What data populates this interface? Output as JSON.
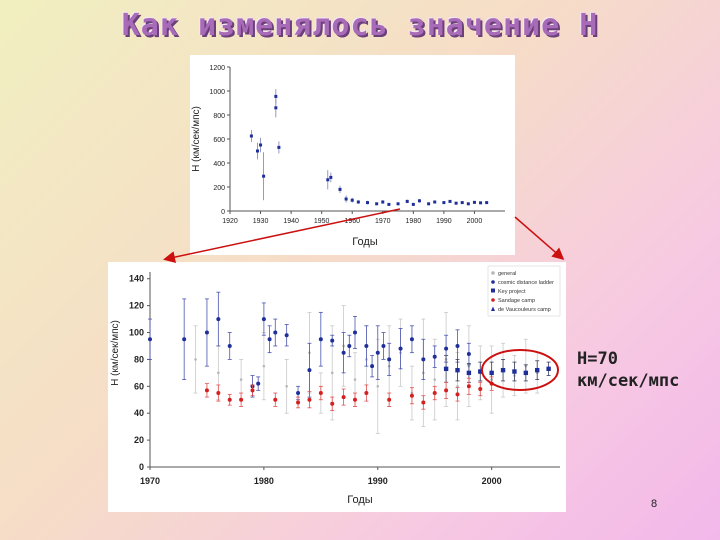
{
  "slide": {
    "title": "Как изменялось значение H",
    "annotation_line1": "H=70",
    "annotation_line2": "км/сек/мпс",
    "page_number": "8"
  },
  "colors": {
    "blue": "#1f2f9a",
    "red": "#d42020",
    "gray": "#b8b8b8",
    "arrow": "#cc1010",
    "ellipse": "#cc1010"
  },
  "chart_data": [
    {
      "type": "scatter",
      "title": "",
      "xlabel": "Годы",
      "ylabel": "H (км/сек/мпс)",
      "xlim": [
        1920,
        2010
      ],
      "ylim": [
        0,
        1200
      ],
      "xticks": [
        "1920",
        "1930",
        "1940",
        "1950",
        "1960",
        "1970",
        "1980",
        "1990",
        "2000"
      ],
      "yticks": [
        "0",
        "200",
        "400",
        "600",
        "800",
        "1000",
        "1200"
      ],
      "series": [
        {
          "points": [
            {
              "x": 1927,
              "y": 625,
              "e": 50
            },
            {
              "x": 1929,
              "y": 500,
              "e": 70
            },
            {
              "x": 1930,
              "y": 550,
              "e": 60
            },
            {
              "x": 1931,
              "y": 290,
              "e": 200
            },
            {
              "x": 1935,
              "y": 955,
              "e": 60
            },
            {
              "x": 1935,
              "y": 860,
              "e": 80
            },
            {
              "x": 1936,
              "y": 530,
              "e": 50
            },
            {
              "x": 1952,
              "y": 260,
              "e": 80
            },
            {
              "x": 1953,
              "y": 280,
              "e": 40
            },
            {
              "x": 1956,
              "y": 180,
              "e": 30
            },
            {
              "x": 1958,
              "y": 100,
              "e": 30
            },
            {
              "x": 1960,
              "y": 90,
              "e": 20
            },
            {
              "x": 1962,
              "y": 75,
              "e": 15
            },
            {
              "x": 1965,
              "y": 70,
              "e": 15
            },
            {
              "x": 1968,
              "y": 60,
              "e": 10
            },
            {
              "x": 1970,
              "y": 75,
              "e": 15
            },
            {
              "x": 1972,
              "y": 55,
              "e": 10
            },
            {
              "x": 1975,
              "y": 60,
              "e": 10
            },
            {
              "x": 1978,
              "y": 80,
              "e": 15
            },
            {
              "x": 1980,
              "y": 55,
              "e": 10
            },
            {
              "x": 1982,
              "y": 85,
              "e": 15
            },
            {
              "x": 1985,
              "y": 60,
              "e": 10
            },
            {
              "x": 1987,
              "y": 75,
              "e": 10
            },
            {
              "x": 1990,
              "y": 70,
              "e": 10
            },
            {
              "x": 1992,
              "y": 80,
              "e": 10
            },
            {
              "x": 1994,
              "y": 65,
              "e": 10
            },
            {
              "x": 1996,
              "y": 70,
              "e": 10
            },
            {
              "x": 1998,
              "y": 60,
              "e": 8
            },
            {
              "x": 2000,
              "y": 72,
              "e": 8
            },
            {
              "x": 2002,
              "y": 68,
              "e": 8
            },
            {
              "x": 2004,
              "y": 70,
              "e": 6
            }
          ]
        }
      ]
    },
    {
      "type": "scatter",
      "title": "",
      "xlabel": "Годы",
      "ylabel": "H (км/сек/мпс)",
      "xlim": [
        1970,
        2006
      ],
      "ylim": [
        0,
        145
      ],
      "xticks": [
        "1970",
        "1980",
        "1990",
        "2000"
      ],
      "yticks": [
        "0",
        "20",
        "40",
        "60",
        "80",
        "100",
        "120",
        "140"
      ],
      "legend_position": "top-right",
      "legend": [
        "general",
        "cosmic distance ladder",
        "Key project",
        "Sandage camp",
        "de Vaucouleurs camp"
      ],
      "series": [
        {
          "name": "general",
          "points": [
            {
              "x": 1974,
              "y": 80,
              "e": 25
            },
            {
              "x": 1976,
              "y": 70,
              "e": 20
            },
            {
              "x": 1978,
              "y": 65,
              "e": 15
            },
            {
              "x": 1980,
              "y": 75,
              "e": 25
            },
            {
              "x": 1982,
              "y": 60,
              "e": 20
            },
            {
              "x": 1984,
              "y": 85,
              "e": 30
            },
            {
              "x": 1985,
              "y": 55,
              "e": 15
            },
            {
              "x": 1986,
              "y": 70,
              "e": 35
            },
            {
              "x": 1987,
              "y": 90,
              "e": 30
            },
            {
              "x": 1988,
              "y": 65,
              "e": 20
            },
            {
              "x": 1989,
              "y": 80,
              "e": 25
            },
            {
              "x": 1990,
              "y": 60,
              "e": 35
            },
            {
              "x": 1991,
              "y": 75,
              "e": 30
            },
            {
              "x": 1992,
              "y": 85,
              "e": 25
            },
            {
              "x": 1993,
              "y": 55,
              "e": 20
            },
            {
              "x": 1994,
              "y": 70,
              "e": 40
            },
            {
              "x": 1995,
              "y": 65,
              "e": 30
            },
            {
              "x": 1996,
              "y": 80,
              "e": 35
            },
            {
              "x": 1997,
              "y": 60,
              "e": 25
            },
            {
              "x": 1998,
              "y": 75,
              "e": 30
            },
            {
              "x": 1999,
              "y": 70,
              "e": 20
            },
            {
              "x": 2000,
              "y": 65,
              "e": 25
            },
            {
              "x": 2001,
              "y": 72,
              "e": 20
            },
            {
              "x": 2002,
              "y": 68,
              "e": 15
            },
            {
              "x": 2003,
              "y": 75,
              "e": 20
            },
            {
              "x": 2004,
              "y": 70,
              "e": 15
            }
          ]
        },
        {
          "name": "de Vaucouleurs camp",
          "points": [
            {
              "x": 1970,
              "y": 95,
              "e": 15
            },
            {
              "x": 1973,
              "y": 95,
              "e": 30
            },
            {
              "x": 1975,
              "y": 100,
              "e": 25
            },
            {
              "x": 1976,
              "y": 110,
              "e": 20
            },
            {
              "x": 1977,
              "y": 90,
              "e": 10
            },
            {
              "x": 1979,
              "y": 60,
              "e": 8
            },
            {
              "x": 1979.5,
              "y": 62,
              "e": 5
            },
            {
              "x": 1980,
              "y": 110,
              "e": 12
            },
            {
              "x": 1980.5,
              "y": 95,
              "e": 10
            },
            {
              "x": 1981,
              "y": 100,
              "e": 10
            },
            {
              "x": 1982,
              "y": 98,
              "e": 8
            },
            {
              "x": 1983,
              "y": 55,
              "e": 5
            },
            {
              "x": 1984,
              "y": 72,
              "e": 20
            },
            {
              "x": 1985,
              "y": 95,
              "e": 20
            },
            {
              "x": 1986,
              "y": 94,
              "e": 4
            },
            {
              "x": 1987,
              "y": 85,
              "e": 15
            },
            {
              "x": 1987.5,
              "y": 90,
              "e": 8
            },
            {
              "x": 1988,
              "y": 100,
              "e": 12
            },
            {
              "x": 1989,
              "y": 90,
              "e": 15
            },
            {
              "x": 1989.5,
              "y": 75,
              "e": 8
            },
            {
              "x": 1990,
              "y": 85,
              "e": 20
            },
            {
              "x": 1990.5,
              "y": 90,
              "e": 10
            },
            {
              "x": 1991,
              "y": 80,
              "e": 12
            },
            {
              "x": 1992,
              "y": 88,
              "e": 15
            },
            {
              "x": 1993,
              "y": 95,
              "e": 10
            },
            {
              "x": 1994,
              "y": 80,
              "e": 15
            },
            {
              "x": 1995,
              "y": 82,
              "e": 8
            },
            {
              "x": 1996,
              "y": 88,
              "e": 10
            },
            {
              "x": 1997,
              "y": 90,
              "e": 12
            },
            {
              "x": 1998,
              "y": 84,
              "e": 8
            }
          ]
        },
        {
          "name": "Key project",
          "points": [
            {
              "x": 1996,
              "y": 73,
              "e": 10
            },
            {
              "x": 1997,
              "y": 72,
              "e": 8
            },
            {
              "x": 1998,
              "y": 70,
              "e": 7
            },
            {
              "x": 1999,
              "y": 71,
              "e": 7
            },
            {
              "x": 2000,
              "y": 70,
              "e": 8
            },
            {
              "x": 2001,
              "y": 72,
              "e": 8
            },
            {
              "x": 2002,
              "y": 71,
              "e": 7
            },
            {
              "x": 2003,
              "y": 70,
              "e": 6
            },
            {
              "x": 2004,
              "y": 72,
              "e": 7
            },
            {
              "x": 2005,
              "y": 73,
              "e": 5
            }
          ]
        },
        {
          "name": "Sandage camp",
          "points": [
            {
              "x": 1975,
              "y": 57,
              "e": 5
            },
            {
              "x": 1976,
              "y": 55,
              "e": 6
            },
            {
              "x": 1977,
              "y": 50,
              "e": 4
            },
            {
              "x": 1978,
              "y": 50,
              "e": 5
            },
            {
              "x": 1979,
              "y": 57,
              "e": 4
            },
            {
              "x": 1981,
              "y": 50,
              "e": 5
            },
            {
              "x": 1983,
              "y": 48,
              "e": 4
            },
            {
              "x": 1984,
              "y": 50,
              "e": 6
            },
            {
              "x": 1985,
              "y": 55,
              "e": 5
            },
            {
              "x": 1986,
              "y": 47,
              "e": 5
            },
            {
              "x": 1987,
              "y": 52,
              "e": 6
            },
            {
              "x": 1988,
              "y": 50,
              "e": 5
            },
            {
              "x": 1989,
              "y": 55,
              "e": 6
            },
            {
              "x": 1991,
              "y": 50,
              "e": 5
            },
            {
              "x": 1993,
              "y": 53,
              "e": 6
            },
            {
              "x": 1994,
              "y": 48,
              "e": 5
            },
            {
              "x": 1995,
              "y": 55,
              "e": 5
            },
            {
              "x": 1996,
              "y": 57,
              "e": 6
            },
            {
              "x": 1997,
              "y": 54,
              "e": 5
            },
            {
              "x": 1998,
              "y": 60,
              "e": 6
            },
            {
              "x": 1999,
              "y": 58,
              "e": 5
            },
            {
              "x": 2000,
              "y": 62,
              "e": 5
            }
          ]
        }
      ]
    }
  ]
}
